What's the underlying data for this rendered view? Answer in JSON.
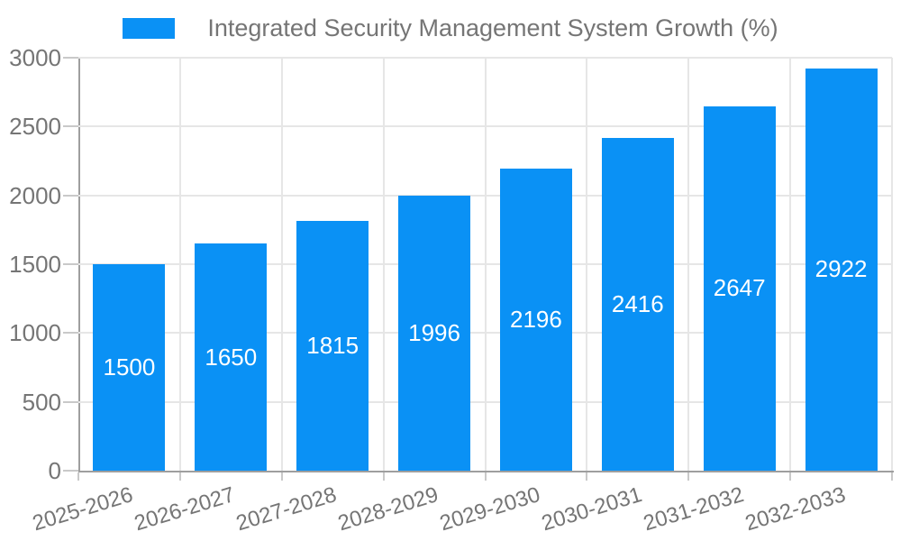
{
  "legend": {
    "label": "Integrated Security Management System Growth (%)"
  },
  "chart_data": {
    "type": "bar",
    "title": "Integrated Security Management System Growth (%)",
    "categories": [
      "2025-2026",
      "2026-2027",
      "2027-2028",
      "2028-2029",
      "2029-2030",
      "2030-2031",
      "2031-2032",
      "2032-2033"
    ],
    "values": [
      1500,
      1650,
      1815,
      1996,
      2196,
      2416,
      2647,
      2922
    ],
    "xlabel": "",
    "ylabel": "",
    "ylim": [
      0,
      3000
    ],
    "yticks": [
      0,
      500,
      1000,
      1500,
      2000,
      2500,
      3000
    ],
    "grid": true,
    "legend_position": "top-center",
    "colors": {
      "bar": "#0a91f5",
      "value_label": "#ffffff",
      "text": "#757575",
      "gridline": "#e6e6e6",
      "axis": "#9e9e9e",
      "tick": "#c9c9c9"
    }
  }
}
